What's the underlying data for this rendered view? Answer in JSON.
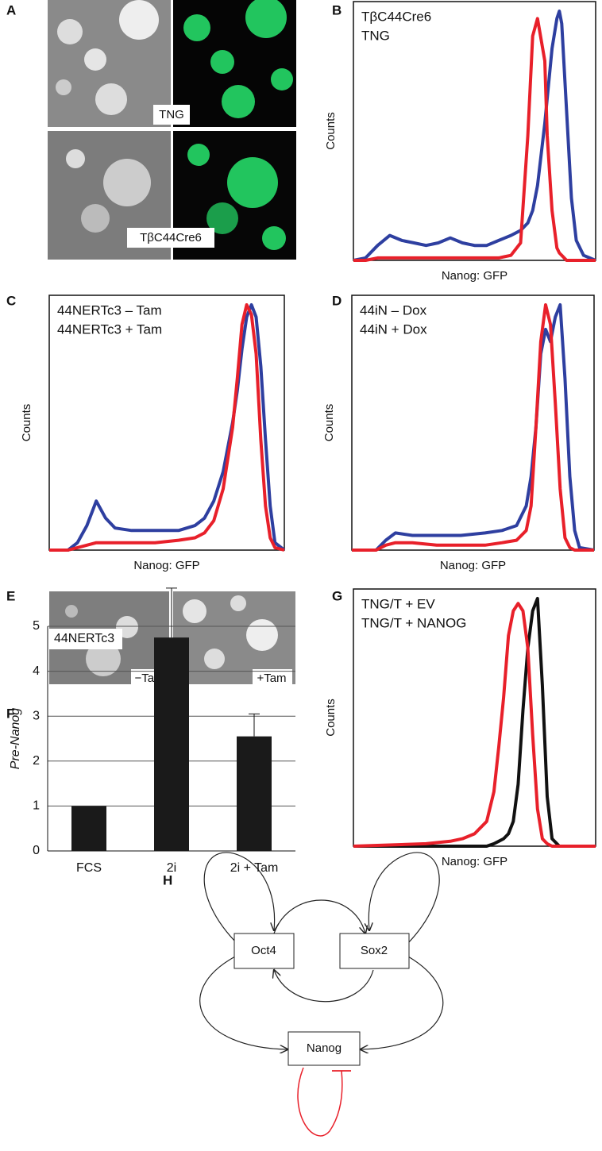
{
  "panel_a": {
    "label": "A",
    "captions": [
      "TNG",
      "TβC44Cre6"
    ]
  },
  "panel_e": {
    "label": "E",
    "captions": [
      "−Tam",
      "+Tam"
    ]
  },
  "chart_data": [
    {
      "type": "line",
      "label": "B",
      "ylabel": "Counts",
      "xlabel": "Nanog: GFP",
      "xlim": [
        0,
        100
      ],
      "ylim": [
        0,
        100
      ],
      "x": [
        0,
        5,
        10,
        15,
        20,
        25,
        30,
        35,
        40,
        45,
        50,
        55,
        60,
        65,
        69,
        72,
        74,
        76,
        79,
        80,
        82,
        84,
        85,
        86,
        88,
        90,
        92,
        95,
        100
      ],
      "series": [
        {
          "name": "TβC44Cre6",
          "color": "#2e3fa0",
          "values": [
            0,
            1,
            6,
            10,
            8,
            7,
            6,
            7,
            9,
            7,
            6,
            6,
            8,
            10,
            12,
            15,
            20,
            30,
            55,
            65,
            85,
            97,
            100,
            95,
            60,
            25,
            8,
            2,
            0
          ]
        },
        {
          "name": "TNG",
          "color": "#e8202a",
          "values": [
            0,
            0,
            1,
            1,
            1,
            1,
            1,
            1,
            1,
            1,
            1,
            1,
            1,
            2,
            7,
            50,
            90,
            97,
            80,
            50,
            20,
            5,
            3,
            2,
            0,
            0,
            0,
            0,
            0
          ]
        }
      ]
    },
    {
      "type": "line",
      "label": "C",
      "ylabel": "Counts",
      "xlabel": "Nanog: GFP",
      "xlim": [
        0,
        100
      ],
      "ylim": [
        0,
        100
      ],
      "x": [
        0,
        8,
        12,
        16,
        20,
        24,
        28,
        35,
        45,
        55,
        62,
        66,
        70,
        74,
        78,
        80,
        82,
        84,
        86,
        88,
        90,
        92,
        94,
        96,
        100
      ],
      "series": [
        {
          "name": "44NERTc3  – Tam",
          "color": "#2e3fa0",
          "values": [
            0,
            0,
            3,
            10,
            20,
            13,
            9,
            8,
            8,
            8,
            10,
            13,
            20,
            32,
            52,
            65,
            82,
            95,
            100,
            95,
            75,
            45,
            18,
            3,
            0
          ]
        },
        {
          "name": "44NERTc3  + Tam",
          "color": "#e8202a",
          "values": [
            0,
            0,
            1,
            2,
            3,
            3,
            3,
            3,
            3,
            4,
            5,
            7,
            12,
            25,
            50,
            70,
            92,
            100,
            96,
            80,
            45,
            18,
            5,
            1,
            0
          ]
        }
      ]
    },
    {
      "type": "line",
      "label": "D",
      "ylabel": "Counts",
      "xlabel": "Nanog: GFP",
      "xlim": [
        0,
        100
      ],
      "ylim": [
        0,
        100
      ],
      "x": [
        0,
        10,
        14,
        18,
        25,
        35,
        45,
        55,
        62,
        68,
        72,
        74,
        76,
        78,
        80,
        82,
        84,
        86,
        88,
        90,
        92,
        94,
        100
      ],
      "series": [
        {
          "name": "44iN  – Dox",
          "color": "#2e3fa0",
          "values": [
            0,
            0,
            4,
            7,
            6,
            6,
            6,
            7,
            8,
            10,
            18,
            30,
            50,
            80,
            90,
            85,
            95,
            100,
            70,
            30,
            8,
            1,
            0
          ]
        },
        {
          "name": "44iN  + Dox",
          "color": "#e8202a",
          "values": [
            0,
            0,
            2,
            3,
            3,
            2,
            2,
            2,
            3,
            4,
            8,
            18,
            50,
            85,
            100,
            92,
            60,
            25,
            5,
            1,
            0,
            0,
            0
          ]
        }
      ]
    },
    {
      "type": "bar",
      "label": "F",
      "ylabel": "Pre-Nanog",
      "annotation": "44NERTc3",
      "color": "#1a1a1a",
      "grid": true,
      "categories": [
        "FCS",
        "2i",
        "2i + Tam"
      ],
      "values": [
        1,
        4.75,
        2.55
      ],
      "errors": [
        null,
        1.1,
        0.5
      ],
      "ylim": [
        0,
        5
      ],
      "yticks": [
        0,
        1,
        2,
        3,
        4,
        5
      ]
    },
    {
      "type": "line",
      "label": "G",
      "ylabel": "Counts",
      "xlabel": "Nanog: GFP",
      "xlim": [
        0,
        100
      ],
      "ylim": [
        0,
        100
      ],
      "x": [
        0,
        30,
        40,
        45,
        50,
        55,
        58,
        60,
        62,
        64,
        66,
        68,
        70,
        72,
        74,
        76,
        78,
        80,
        82,
        85,
        100
      ],
      "series": [
        {
          "name": "TNG/T + EV",
          "color": "#111111",
          "values": [
            0,
            0,
            0,
            0,
            0,
            0,
            1,
            2,
            3,
            5,
            10,
            25,
            55,
            80,
            95,
            100,
            65,
            20,
            3,
            0,
            0
          ]
        },
        {
          "name": "TNG/T + NANOG",
          "color": "#e8202a",
          "values": [
            0,
            1,
            2,
            3,
            5,
            10,
            22,
            40,
            60,
            85,
            95,
            98,
            95,
            80,
            45,
            15,
            3,
            1,
            0,
            0,
            0
          ]
        }
      ]
    }
  ],
  "diagram": {
    "label": "H",
    "nodes": [
      {
        "label": "Oct4"
      },
      {
        "label": "Sox2"
      },
      {
        "label": "Nanog"
      }
    ]
  }
}
